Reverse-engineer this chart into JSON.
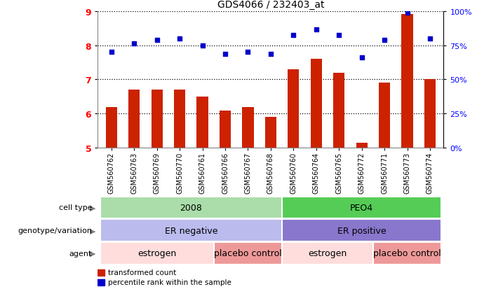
{
  "title": "GDS4066 / 232403_at",
  "samples": [
    "GSM560762",
    "GSM560763",
    "GSM560769",
    "GSM560770",
    "GSM560761",
    "GSM560766",
    "GSM560767",
    "GSM560768",
    "GSM560760",
    "GSM560764",
    "GSM560765",
    "GSM560772",
    "GSM560771",
    "GSM560773",
    "GSM560774"
  ],
  "bar_values": [
    6.2,
    6.7,
    6.7,
    6.7,
    6.5,
    6.1,
    6.2,
    5.9,
    7.3,
    7.6,
    7.2,
    5.15,
    6.9,
    8.9,
    7.0
  ],
  "dot_values": [
    7.8,
    8.05,
    8.15,
    8.2,
    8.0,
    7.75,
    7.8,
    7.75,
    8.3,
    8.45,
    8.3,
    7.65,
    8.15,
    8.95,
    8.2
  ],
  "bar_color": "#cc2200",
  "dot_color": "#0000cc",
  "ylim_left": [
    5,
    9
  ],
  "yticks_left": [
    5,
    6,
    7,
    8,
    9
  ],
  "right_tick_labels": [
    "0%",
    "25%",
    "50%",
    "75%",
    "100%"
  ],
  "cell_type_groups": [
    {
      "label": "2008",
      "start": 0,
      "end": 8,
      "color": "#aaddaa"
    },
    {
      "label": "PEO4",
      "start": 8,
      "end": 15,
      "color": "#55cc55"
    }
  ],
  "genotype_groups": [
    {
      "label": "ER negative",
      "start": 0,
      "end": 8,
      "color": "#bbbbee"
    },
    {
      "label": "ER positive",
      "start": 8,
      "end": 15,
      "color": "#8877cc"
    }
  ],
  "agent_groups": [
    {
      "label": "estrogen",
      "start": 0,
      "end": 5,
      "color": "#ffdddd"
    },
    {
      "label": "placebo control",
      "start": 5,
      "end": 8,
      "color": "#ee9999"
    },
    {
      "label": "estrogen",
      "start": 8,
      "end": 12,
      "color": "#ffdddd"
    },
    {
      "label": "placebo control",
      "start": 12,
      "end": 15,
      "color": "#ee9999"
    }
  ],
  "row_labels": [
    "cell type",
    "genotype/variation",
    "agent"
  ],
  "legend_bar_label": "transformed count",
  "legend_dot_label": "percentile rank within the sample",
  "background_color": "#ffffff",
  "title_fontsize": 10,
  "tick_fontsize": 7,
  "label_fontsize": 8,
  "annotation_fontsize": 9
}
